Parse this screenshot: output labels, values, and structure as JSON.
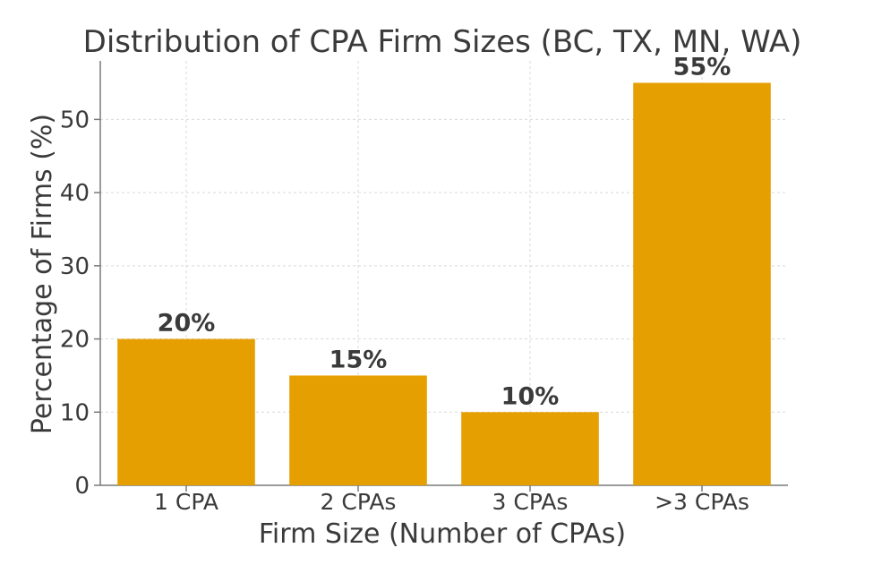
{
  "chart_data": {
    "type": "bar",
    "title": "Distribution of CPA Firm Sizes (BC, TX, MN, WA)",
    "xlabel": "Firm Size (Number of CPAs)",
    "ylabel": "Percentage of Firms (%)",
    "categories": [
      "1 CPA",
      "2 CPAs",
      "3 CPAs",
      ">3 CPAs"
    ],
    "values": [
      20,
      15,
      10,
      55
    ],
    "data_labels": [
      "20%",
      "15%",
      "10%",
      "55%"
    ],
    "ylim": [
      0,
      58
    ],
    "yticks": [
      0,
      10,
      20,
      30,
      40,
      50
    ],
    "ytick_labels": [
      "0",
      "10",
      "20",
      "30",
      "40",
      "50"
    ],
    "grid": true,
    "bar_color": "#E69F00"
  }
}
